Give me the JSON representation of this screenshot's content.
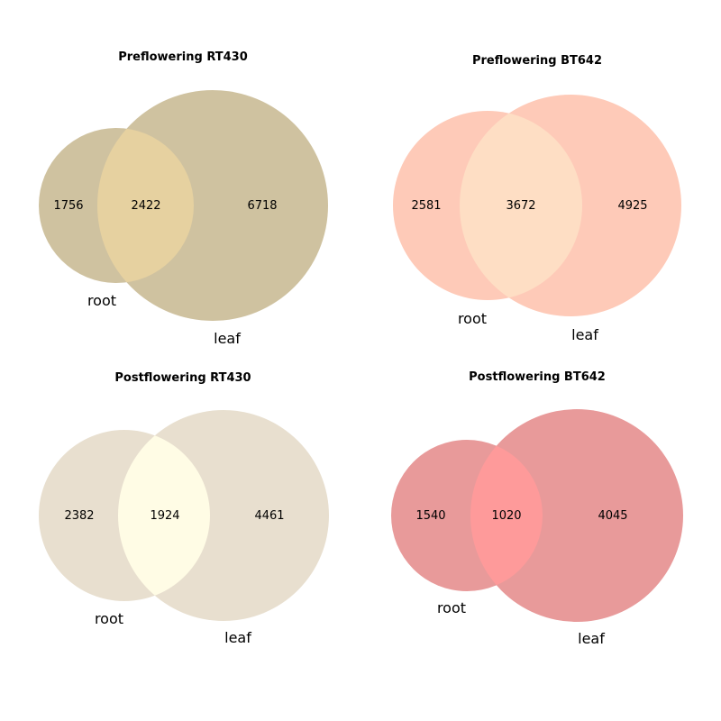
{
  "panels": [
    {
      "title": "Preflowering RT430",
      "sets": {
        "left": "root",
        "right": "leaf"
      },
      "counts": {
        "left_only": "1756",
        "both": "2422",
        "right_only": "6718"
      },
      "colors": {
        "left": "#cfc2a0",
        "right": "#cfc2a0",
        "overlap": "#e6d1a0"
      }
    },
    {
      "title": "Preflowering BT642",
      "sets": {
        "left": "root",
        "right": "leaf"
      },
      "counts": {
        "left_only": "2581",
        "both": "3672",
        "right_only": "4925"
      },
      "colors": {
        "left": "#fecab8",
        "right": "#fecab8",
        "overlap": "#fedec4"
      }
    },
    {
      "title": "Postflowering RT430",
      "sets": {
        "left": "root",
        "right": "leaf"
      },
      "counts": {
        "left_only": "2382",
        "both": "1924",
        "right_only": "4461"
      },
      "colors": {
        "left": "#e8dfcf",
        "right": "#e8dfcf",
        "overlap": "#fffce5"
      }
    },
    {
      "title": "Postflowering BT642",
      "sets": {
        "left": "root",
        "right": "leaf"
      },
      "counts": {
        "left_only": "1540",
        "both": "1020",
        "right_only": "4045"
      },
      "colors": {
        "left": "#e89a9a",
        "right": "#e89a9a",
        "overlap": "#fe9a9a"
      }
    }
  ]
}
